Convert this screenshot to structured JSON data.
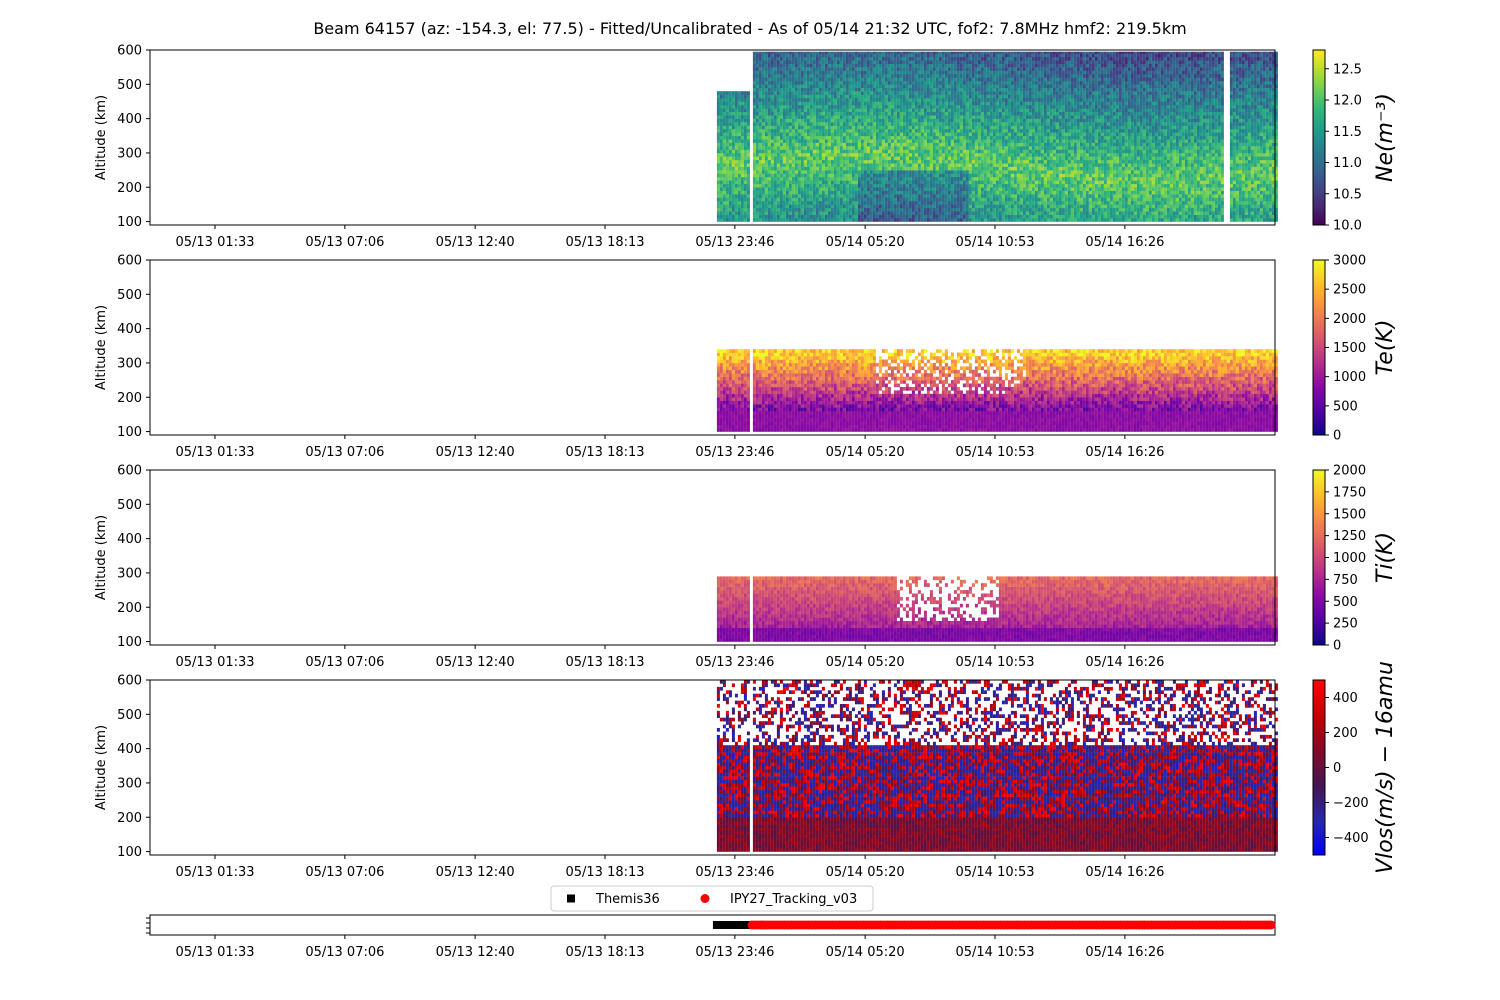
{
  "title": "Beam 64157 (az: -154.3, el: 77.5) - Fitted/Uncalibrated - As of 05/14 21:32 UTC, fof2: 7.8MHz  hmf2: 219.5km",
  "chart_data": [
    {
      "type": "heatmap",
      "ylabel": "Altitude (km)",
      "ylim": [
        90,
        600
      ],
      "yticks": [
        "100",
        "200",
        "300",
        "400",
        "500",
        "600"
      ],
      "xticks": [
        "05/13 01:33",
        "05/13 07:06",
        "05/13 12:40",
        "05/13 18:13",
        "05/13 23:46",
        "05/14 05:20",
        "05/14 10:53",
        "05/14 16:26"
      ],
      "colorbar": {
        "label": "Ne(m⁻³)",
        "range": [
          10.0,
          12.8
        ],
        "ticks": [
          "10.0",
          "10.5",
          "11.0",
          "11.5",
          "12.0",
          "12.5"
        ],
        "colormap": "viridis"
      },
      "data_extent": {
        "time_start": "05/13 23:00",
        "time_end": "05/14 23:59",
        "alt_top": 595
      }
    },
    {
      "type": "heatmap",
      "ylabel": "Altitude (km)",
      "ylim": [
        90,
        600
      ],
      "yticks": [
        "100",
        "200",
        "300",
        "400",
        "500",
        "600"
      ],
      "xticks": [
        "05/13 01:33",
        "05/13 07:06",
        "05/13 12:40",
        "05/13 18:13",
        "05/13 23:46",
        "05/14 05:20",
        "05/14 10:53",
        "05/14 16:26"
      ],
      "colorbar": {
        "label": "Te(K)",
        "range": [
          0,
          3000
        ],
        "ticks": [
          "0",
          "500",
          "1000",
          "1500",
          "2000",
          "2500",
          "3000"
        ],
        "colormap": "plasma"
      },
      "data_extent": {
        "time_start": "05/13 23:00",
        "time_end": "05/14 23:59",
        "alt_top": 340
      }
    },
    {
      "type": "heatmap",
      "ylabel": "Altitude (km)",
      "ylim": [
        90,
        600
      ],
      "yticks": [
        "100",
        "200",
        "300",
        "400",
        "500",
        "600"
      ],
      "xticks": [
        "05/13 01:33",
        "05/13 07:06",
        "05/13 12:40",
        "05/13 18:13",
        "05/13 23:46",
        "05/14 05:20",
        "05/14 10:53",
        "05/14 16:26"
      ],
      "colorbar": {
        "label": "Ti(K)",
        "range": [
          0,
          2000
        ],
        "ticks": [
          "0",
          "250",
          "500",
          "750",
          "1000",
          "1250",
          "1500",
          "1750",
          "2000"
        ],
        "colormap": "plasma"
      },
      "data_extent": {
        "time_start": "05/13 23:00",
        "time_end": "05/14 23:59",
        "alt_top": 290
      }
    },
    {
      "type": "heatmap",
      "ylabel": "Altitude (km)",
      "ylim": [
        90,
        600
      ],
      "yticks": [
        "100",
        "200",
        "300",
        "400",
        "500",
        "600"
      ],
      "xticks": [
        "05/13 01:33",
        "05/13 07:06",
        "05/13 12:40",
        "05/13 18:13",
        "05/13 23:46",
        "05/14 05:20",
        "05/14 10:53",
        "05/14 16:26"
      ],
      "colorbar": {
        "label": "Vlos(m/s) − 16amu",
        "range": [
          -500,
          500
        ],
        "ticks": [
          "−400",
          "−200",
          "0",
          "200",
          "400"
        ],
        "colormap": "red-blue"
      },
      "data_extent": {
        "time_start": "05/13 23:00",
        "time_end": "05/14 23:59",
        "alt_top": 600
      }
    },
    {
      "type": "scatter",
      "xticks": [
        "05/13 01:33",
        "05/13 07:06",
        "05/13 12:40",
        "05/13 18:13",
        "05/13 23:46",
        "05/14 05:20",
        "05/14 10:53",
        "05/14 16:26"
      ],
      "legend_position": "top-center",
      "series": [
        {
          "name": "Themis36",
          "color": "#000000",
          "marker": "square",
          "time_start": "05/13 23:00",
          "time_end": "05/14 00:30"
        },
        {
          "name": "IPY27_Tracking_v03",
          "color": "#ff0000",
          "marker": "circle",
          "time_start": "05/14 00:30",
          "time_end": "05/14 23:59"
        }
      ]
    }
  ]
}
